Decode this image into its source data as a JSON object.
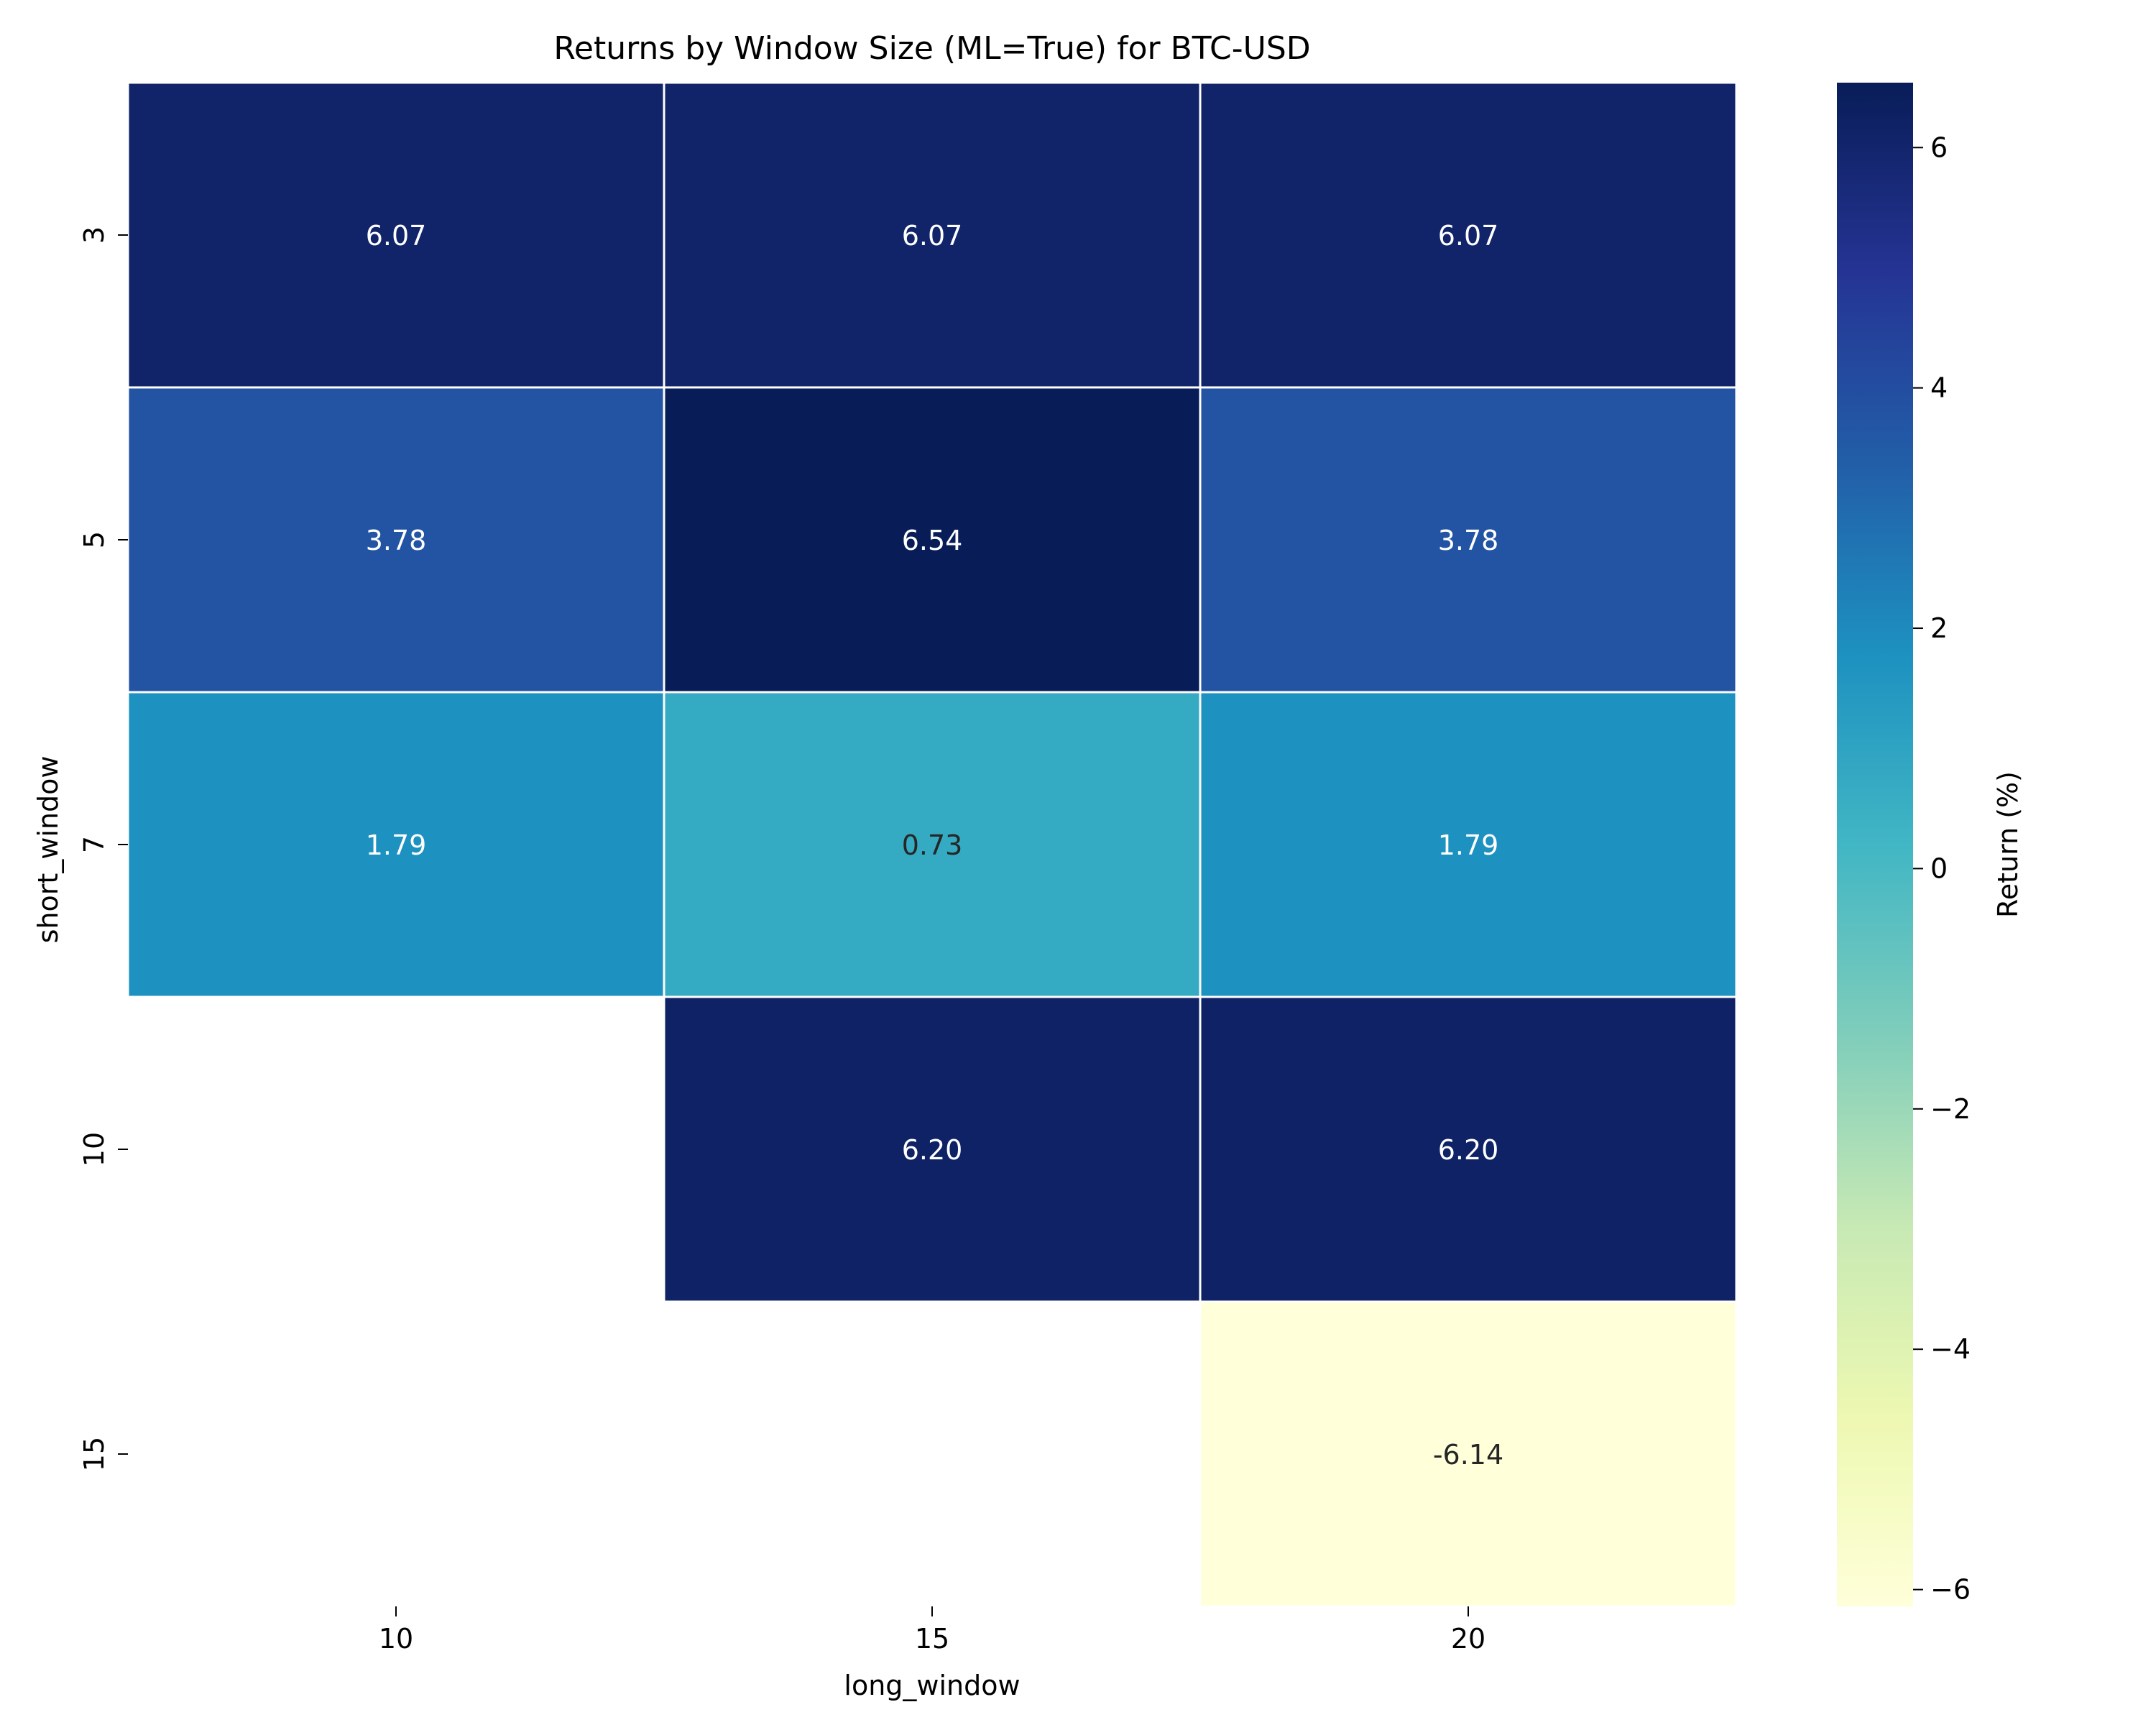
{
  "chart_data": {
    "type": "heatmap",
    "title": "Returns by Window Size (ML=True) for BTC-USD",
    "xlabel": "long_window",
    "ylabel": "short_window",
    "x_categories": [
      "10",
      "15",
      "20"
    ],
    "y_categories": [
      "3",
      "5",
      "7",
      "10",
      "15"
    ],
    "values": [
      [
        6.07,
        6.07,
        6.07
      ],
      [
        3.78,
        6.54,
        3.78
      ],
      [
        1.79,
        0.73,
        1.79
      ],
      [
        null,
        6.2,
        6.2
      ],
      [
        null,
        null,
        -6.14
      ]
    ],
    "cell_labels": [
      [
        "6.07",
        "6.07",
        "6.07"
      ],
      [
        "3.78",
        "6.54",
        "3.78"
      ],
      [
        "1.79",
        "0.73",
        "1.79"
      ],
      [
        "",
        "6.20",
        "6.20"
      ],
      [
        "",
        "",
        "-6.14"
      ]
    ],
    "colorbar": {
      "label": "Return (%)",
      "min": -6.14,
      "max": 6.54,
      "ticks": [
        6,
        4,
        2,
        0,
        -2,
        -4,
        -6
      ],
      "tick_labels": [
        "6",
        "4",
        "2",
        "0",
        "−2",
        "−4",
        "−6"
      ]
    },
    "colormap": "YlGnBu",
    "colormap_stops": [
      "#ffffd9",
      "#edf8b1",
      "#c7e9b4",
      "#7fcdbb",
      "#41b6c4",
      "#1d91c0",
      "#225ea8",
      "#253494",
      "#081d58"
    ],
    "grid": false,
    "legend": "colorbar-right"
  }
}
